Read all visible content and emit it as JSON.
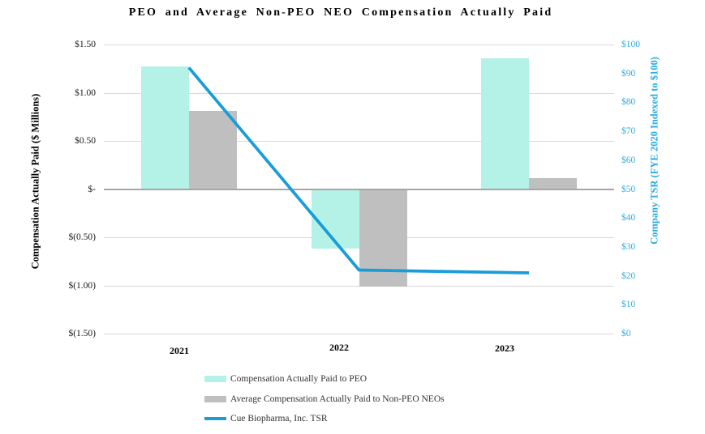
{
  "title": "PEO and Average Non-PEO NEO Compensation Actually Paid",
  "chart_data": {
    "type": "combo-bar-line",
    "title": "PEO and Average Non-PEO NEO Compensation Actually Paid",
    "categories": [
      "2021",
      "2022",
      "2023"
    ],
    "series": [
      {
        "name": "Compensation Actually Paid to PEO",
        "type": "bar",
        "axis": "left",
        "color": "#b4f2e8",
        "values": [
          1.27,
          -0.62,
          1.36
        ]
      },
      {
        "name": "Average Compensation Actually Paid to Non-PEO NEOs",
        "type": "bar",
        "axis": "left",
        "color": "#bfbfbf",
        "values": [
          0.81,
          -1.01,
          0.11
        ]
      },
      {
        "name": "Cue Biopharma, Inc. TSR",
        "type": "line",
        "axis": "right",
        "color": "#199cd8",
        "values": [
          92,
          22,
          21
        ]
      }
    ],
    "left_axis": {
      "label": "Compensation Actually Paid ($ Millions)",
      "tick_labels": [
        "$1.50",
        "$1.00",
        "$0.50",
        "$-",
        "$(0.50)",
        "$(1.00)",
        "$(1.50)"
      ],
      "tick_values": [
        1.5,
        1.0,
        0.5,
        0,
        -0.5,
        -1.0,
        -1.5
      ],
      "range": [
        -1.5,
        1.5
      ]
    },
    "right_axis": {
      "label": "Company TSR (FYE 2020 Indexed to $100)",
      "tick_labels": [
        "$100",
        "$90",
        "$80",
        "$70",
        "$60",
        "$50",
        "$40",
        "$30",
        "$20",
        "$10",
        "$0"
      ],
      "tick_values": [
        100,
        90,
        80,
        70,
        60,
        50,
        40,
        30,
        20,
        10,
        0
      ],
      "range": [
        0,
        100
      ],
      "color": "#29abe2"
    },
    "grid": true,
    "gridline_color": "#d9d9d9",
    "zero_line_color": "#a6a6a6",
    "legend_position": "bottom-left"
  }
}
